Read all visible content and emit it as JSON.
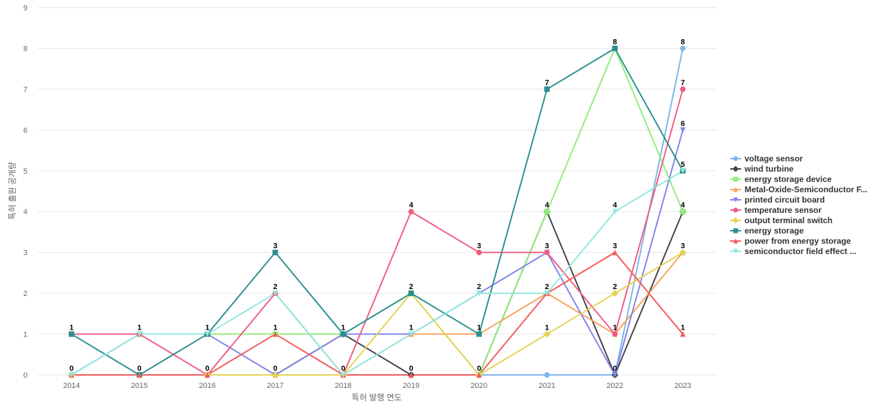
{
  "chart_data": {
    "type": "line",
    "title": "",
    "xlabel": "특허 발행 연도",
    "ylabel": "특허 출원 공개량",
    "ylim": [
      0,
      9
    ],
    "yticks": [
      0,
      1,
      2,
      3,
      4,
      5,
      6,
      7,
      8,
      9
    ],
    "grid": true,
    "legend_position": "right",
    "x": [
      "2014",
      "2015",
      "2016",
      "2017",
      "2018",
      "2019",
      "2020",
      "2021",
      "2022",
      "2023"
    ],
    "series": [
      {
        "name": "voltage sensor",
        "legend_label": "voltage sensor",
        "color": "#7cb5ec",
        "marker": "circle",
        "values": [
          0,
          0,
          0,
          0,
          0,
          0,
          0,
          0,
          0,
          8
        ]
      },
      {
        "name": "wind turbine",
        "legend_label": "wind turbine",
        "color": "#434348",
        "marker": "diamond",
        "values": [
          0,
          0,
          0,
          0,
          1,
          0,
          0,
          4,
          0,
          4
        ]
      },
      {
        "name": "energy storage device",
        "legend_label": "energy storage device",
        "color": "#90ed7d",
        "marker": "square",
        "values": [
          1,
          1,
          1,
          1,
          1,
          2,
          0,
          4,
          8,
          4
        ]
      },
      {
        "name": "Metal-Oxide-Semiconductor F...",
        "legend_label": "Metal-Oxide-Semiconductor F...",
        "color": "#f7a35c",
        "marker": "triangle",
        "values": [
          0,
          0,
          0,
          0,
          0,
          1,
          1,
          2,
          1,
          3
        ]
      },
      {
        "name": "printed circuit board",
        "legend_label": "printed circuit board",
        "color": "#8085e9",
        "marker": "triangle-down",
        "values": [
          0,
          1,
          1,
          0,
          1,
          1,
          2,
          3,
          0,
          6
        ]
      },
      {
        "name": "temperature sensor",
        "legend_label": "temperature sensor",
        "color": "#f15c80",
        "marker": "circle",
        "values": [
          1,
          1,
          0,
          2,
          0,
          4,
          3,
          3,
          1,
          7
        ]
      },
      {
        "name": "output terminal switch",
        "legend_label": "output terminal switch",
        "color": "#e4d354",
        "marker": "diamond",
        "values": [
          0,
          0,
          0,
          0,
          0,
          2,
          0,
          1,
          2,
          3
        ]
      },
      {
        "name": "energy storage",
        "legend_label": "energy storage",
        "color": "#2b908f",
        "marker": "square",
        "values": [
          1,
          0,
          1,
          3,
          1,
          2,
          1,
          7,
          8,
          5
        ]
      },
      {
        "name": "power from energy storage",
        "legend_label": "power from energy storage",
        "color": "#f45b5b",
        "marker": "triangle",
        "values": [
          0,
          0,
          0,
          1,
          0,
          0,
          0,
          2,
          3,
          1
        ]
      },
      {
        "name": "semiconductor field effect ...",
        "legend_label": "semiconductor field effect ...",
        "color": "#91e8e1",
        "marker": "triangle-down",
        "values": [
          0,
          1,
          1,
          2,
          0,
          1,
          2,
          2,
          4,
          5
        ]
      }
    ],
    "data_labels": [
      {
        "category": "2014",
        "values": [
          1,
          0
        ]
      },
      {
        "category": "2015",
        "values": [
          1,
          0
        ]
      },
      {
        "category": "2016",
        "values": [
          1,
          0
        ]
      },
      {
        "category": "2017",
        "values": [
          3,
          2,
          1,
          0
        ]
      },
      {
        "category": "2018",
        "values": [
          1,
          0
        ]
      },
      {
        "category": "2019",
        "values": [
          4,
          2,
          1,
          0
        ]
      },
      {
        "category": "2020",
        "values": [
          3,
          2,
          1,
          0
        ]
      },
      {
        "category": "2021",
        "values": [
          7,
          4,
          3,
          2,
          1
        ]
      },
      {
        "category": "2022",
        "values": [
          8,
          4,
          3,
          2,
          1,
          0
        ]
      },
      {
        "category": "2023",
        "values": [
          8,
          7,
          6,
          5,
          4,
          3,
          1
        ]
      }
    ]
  }
}
